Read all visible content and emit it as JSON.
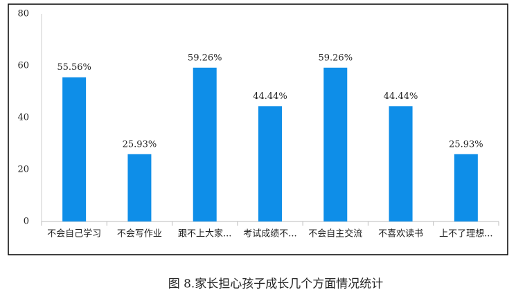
{
  "chart_data": {
    "type": "bar",
    "caption": "图 8.家长担心孩子成长几个方面情况统计",
    "categories": [
      "不会自己学习",
      "不会写作业",
      "跟不上大家...",
      "考试成绩不...",
      "不会自主交流",
      "不喜欢读书",
      "上不了理想..."
    ],
    "values": [
      55.56,
      25.93,
      59.26,
      44.44,
      59.26,
      44.44,
      25.93
    ],
    "value_labels": [
      "55.56%",
      "25.93%",
      "59.26%",
      "44.44%",
      "59.26%",
      "44.44%",
      "25.93%"
    ],
    "color": "#0e8ee8",
    "ylim": [
      0,
      80
    ],
    "yticks": [
      0,
      20,
      40,
      60,
      80
    ],
    "grid": false
  }
}
